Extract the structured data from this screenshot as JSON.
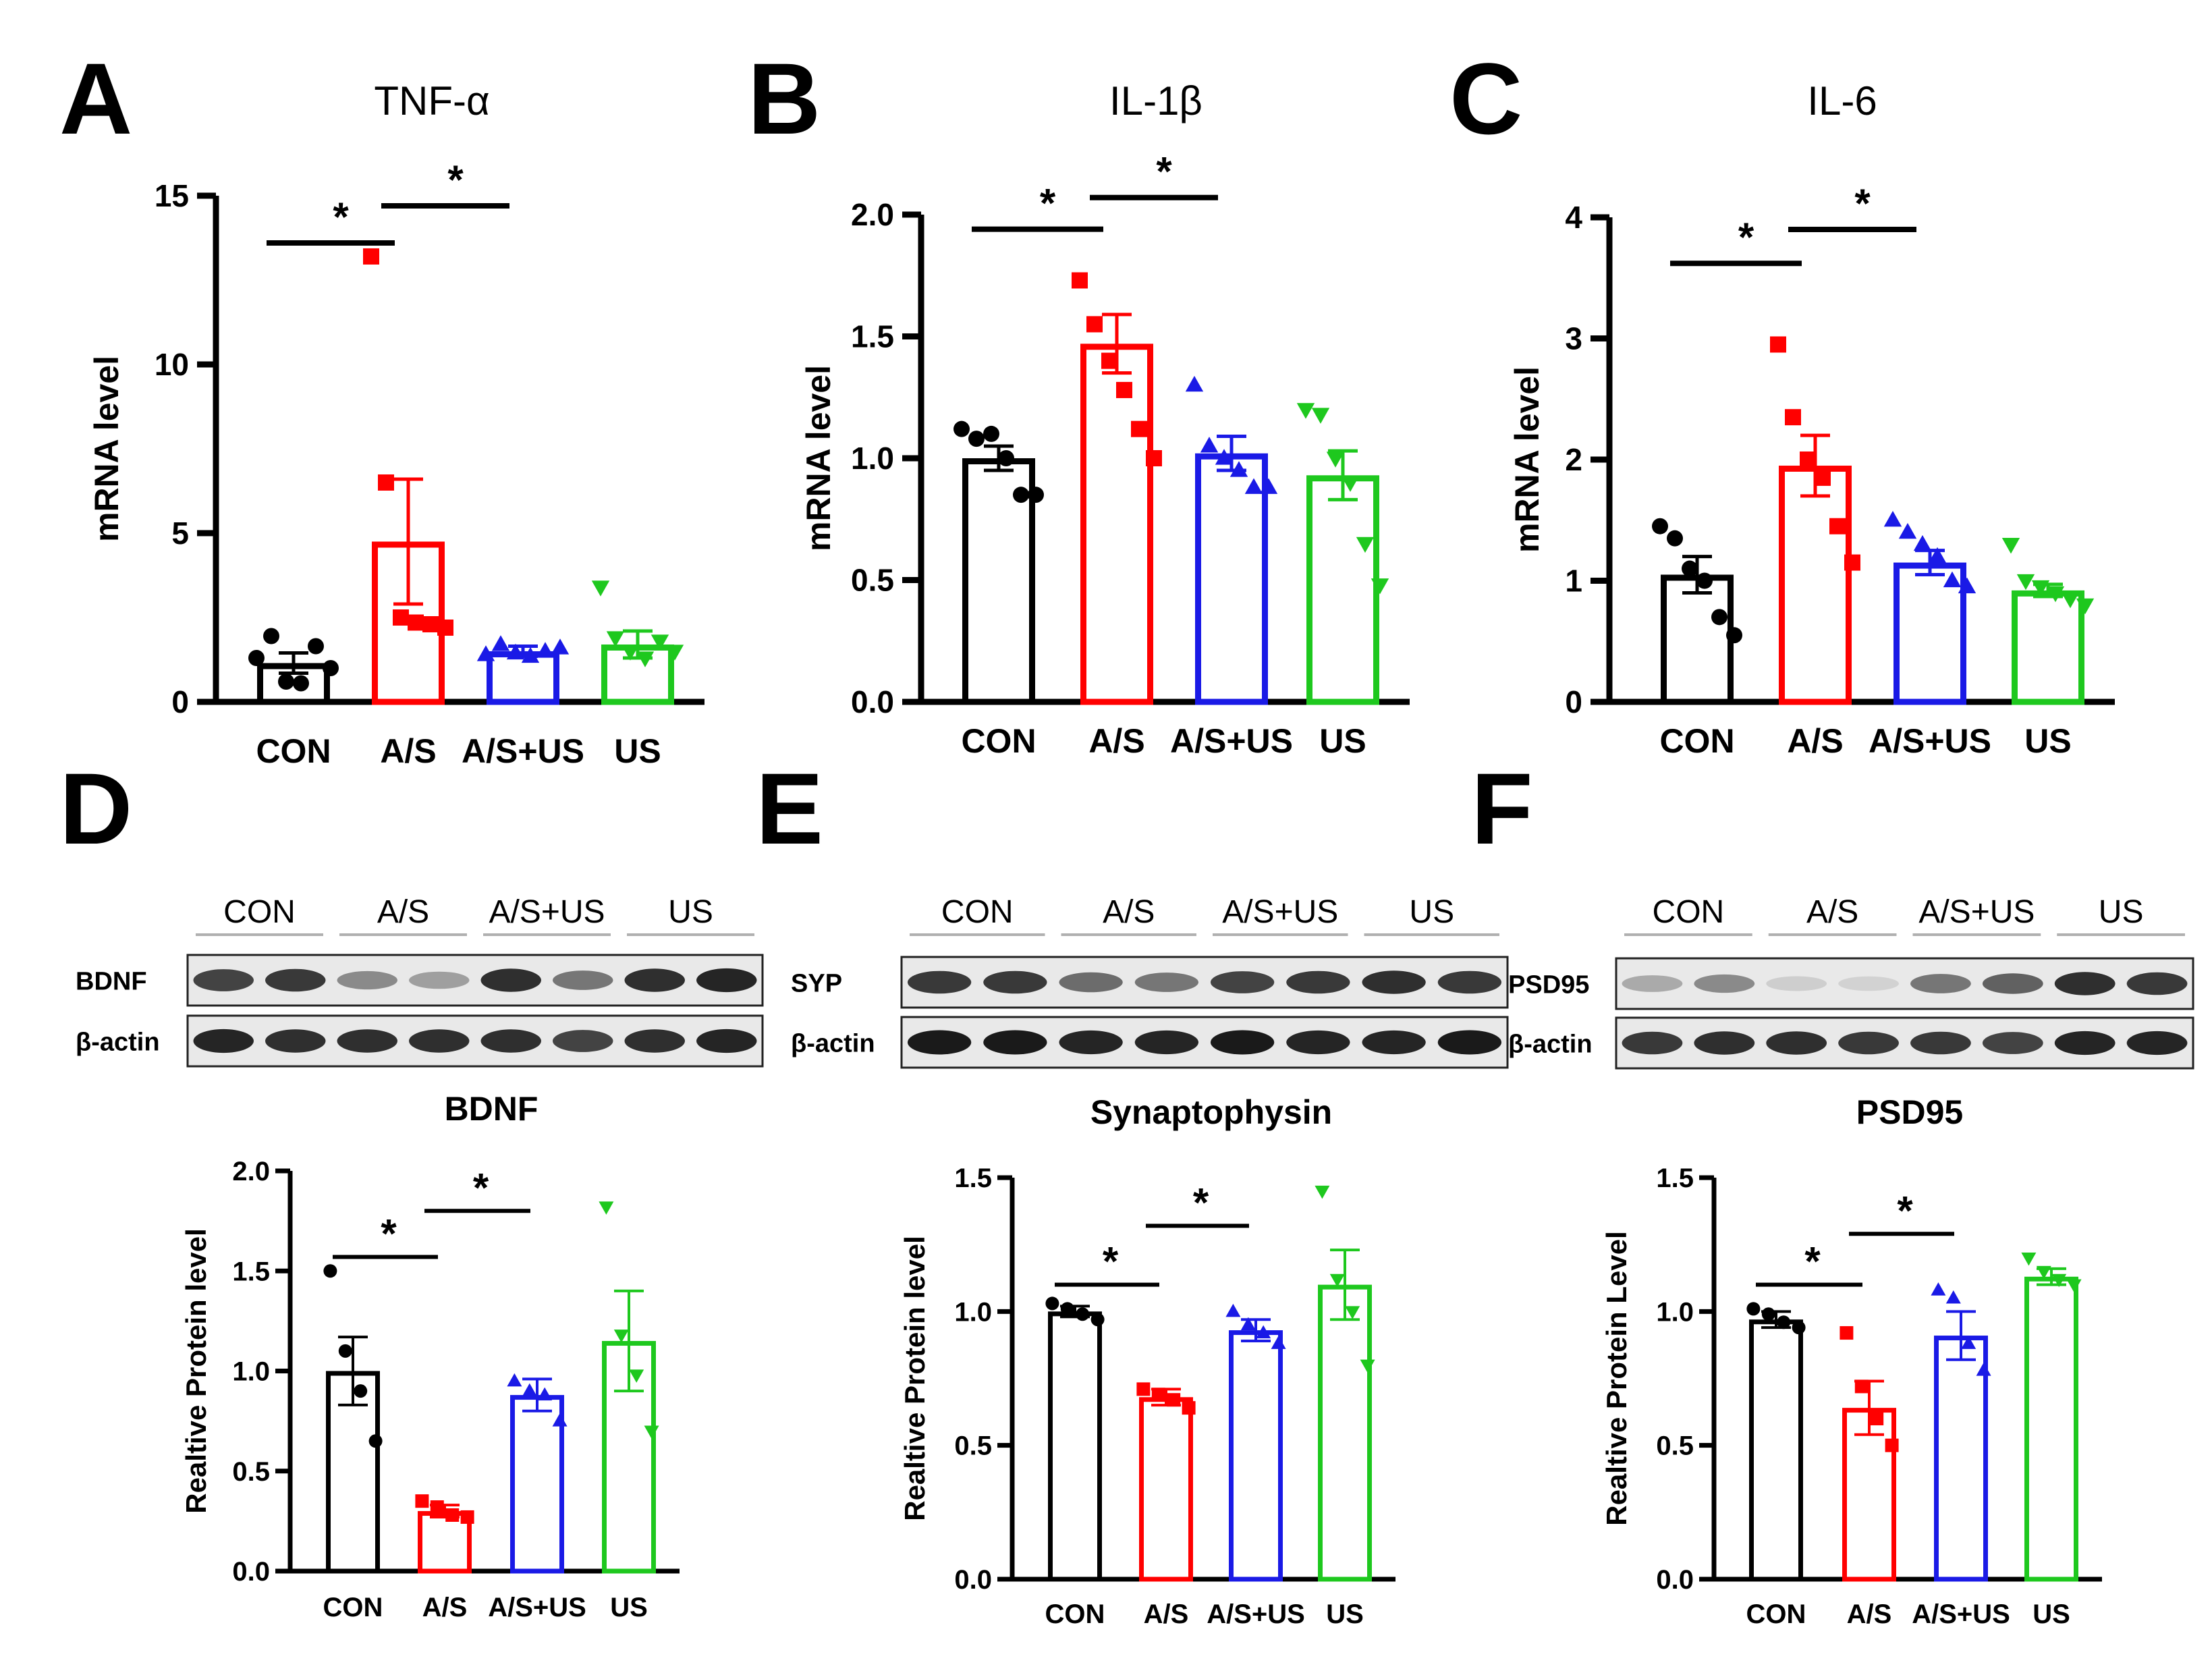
{
  "colors": {
    "CON": "#000000",
    "A/S": "#ff0000",
    "A/S+US": "#1a1ae6",
    "US": "#1ec81e",
    "axis": "#000000",
    "lane_rule": "#b0b0b0"
  },
  "chart_data": [
    {
      "panel": "A",
      "type": "bar",
      "title": "TNF-α",
      "ylabel": "mRNA level",
      "ylim": [
        0,
        15
      ],
      "yticks": [
        "0",
        "5",
        "10",
        "15"
      ],
      "categories": [
        "CON",
        "A/S",
        "A/S+US",
        "US"
      ],
      "values": [
        1.15,
        4.75,
        1.5,
        1.7
      ],
      "sem": [
        0.3,
        1.85,
        0.15,
        0.4
      ],
      "points": [
        [
          1.3,
          1.95,
          0.6,
          0.55,
          1.65,
          1.0
        ],
        [
          13.2,
          6.5,
          2.5,
          2.35,
          2.3,
          2.2
        ],
        [
          1.4,
          1.7,
          1.45,
          1.35,
          1.5,
          1.6
        ],
        [
          3.4,
          1.9,
          1.5,
          1.3,
          1.8,
          1.5
        ]
      ],
      "markers": [
        "circle",
        "square",
        "triangle",
        "triangle-down"
      ],
      "significance": [
        {
          "from": "CON",
          "to": "A/S",
          "label": "*",
          "y": 13.6
        },
        {
          "from": "A/S",
          "to": "A/S+US",
          "label": "*",
          "y": 14.7
        }
      ]
    },
    {
      "panel": "B",
      "type": "bar",
      "title": "IL-1β",
      "ylabel": "mRNA level",
      "ylim": [
        0,
        2
      ],
      "yticks": [
        "0.0",
        "0.5",
        "1.0",
        "1.5",
        "2.0"
      ],
      "categories": [
        "CON",
        "A/S",
        "A/S+US",
        "US"
      ],
      "values": [
        1.0,
        1.47,
        1.02,
        0.93
      ],
      "sem": [
        0.05,
        0.12,
        0.07,
        0.1
      ],
      "points": [
        [
          1.12,
          1.08,
          1.1,
          1.0,
          0.85,
          0.85
        ],
        [
          1.73,
          1.55,
          1.4,
          1.28,
          1.12,
          1.0
        ],
        [
          1.3,
          1.05,
          1.0,
          0.95,
          0.88,
          0.88
        ],
        [
          1.2,
          1.18,
          1.0,
          0.9,
          0.65,
          0.48
        ]
      ],
      "markers": [
        "circle",
        "square",
        "triangle",
        "triangle-down"
      ],
      "significance": [
        {
          "from": "CON",
          "to": "A/S",
          "label": "*",
          "y": 1.94
        },
        {
          "from": "A/S",
          "to": "A/S+US",
          "label": "*",
          "y": 2.07
        }
      ]
    },
    {
      "panel": "C",
      "type": "bar",
      "title": "IL-6",
      "ylabel": "mRNA level",
      "ylim": [
        0,
        4
      ],
      "yticks": [
        "0",
        "1",
        "2",
        "3",
        "4"
      ],
      "categories": [
        "CON",
        "A/S",
        "A/S+US",
        "US"
      ],
      "values": [
        1.05,
        1.95,
        1.15,
        0.92
      ],
      "sem": [
        0.15,
        0.25,
        0.1,
        0.05
      ],
      "points": [
        [
          1.45,
          1.35,
          1.1,
          1.0,
          0.7,
          0.55
        ],
        [
          2.95,
          2.35,
          2.0,
          1.85,
          1.45,
          1.15
        ],
        [
          1.5,
          1.4,
          1.3,
          1.2,
          1.0,
          0.95
        ],
        [
          1.3,
          1.0,
          0.95,
          0.9,
          0.85,
          0.8
        ]
      ],
      "markers": [
        "circle",
        "square",
        "triangle",
        "triangle-down"
      ],
      "significance": [
        {
          "from": "CON",
          "to": "A/S",
          "label": "*",
          "y": 3.62
        },
        {
          "from": "A/S",
          "to": "A/S+US",
          "label": "*",
          "y": 3.9
        }
      ]
    },
    {
      "panel": "D",
      "type": "bar",
      "title": "BDNF",
      "ylabel": "Realtive Protein level",
      "ylim": [
        0,
        2
      ],
      "yticks": [
        "0.0",
        "0.5",
        "1.0",
        "1.5",
        "2.0"
      ],
      "categories": [
        "CON",
        "A/S",
        "A/S+US",
        "US"
      ],
      "values": [
        1.0,
        0.3,
        0.88,
        1.15
      ],
      "sem": [
        0.17,
        0.03,
        0.08,
        0.25
      ],
      "points": [
        [
          1.5,
          1.1,
          0.9,
          0.65
        ],
        [
          0.35,
          0.32,
          0.28,
          0.27
        ],
        [
          0.95,
          0.9,
          0.88,
          0.75
        ],
        [
          1.82,
          1.18,
          0.98,
          0.7
        ]
      ],
      "markers": [
        "circle",
        "square",
        "triangle",
        "triangle-down"
      ],
      "significance": [
        {
          "from": "CON",
          "to": "A/S",
          "label": "*",
          "y": 1.57
        },
        {
          "from": "A/S",
          "to": "A/S+US",
          "label": "*",
          "y": 1.8
        }
      ]
    },
    {
      "panel": "E",
      "type": "bar",
      "title": "Synaptophysin",
      "ylabel": "Realtive Protein level",
      "ylim": [
        0,
        1.5
      ],
      "yticks": [
        "0.0",
        "0.5",
        "1.0",
        "1.5"
      ],
      "categories": [
        "CON",
        "A/S",
        "A/S+US",
        "US"
      ],
      "values": [
        1.0,
        0.68,
        0.93,
        1.1
      ],
      "sem": [
        0.02,
        0.03,
        0.04,
        0.13
      ],
      "points": [
        [
          1.03,
          1.01,
          0.99,
          0.97
        ],
        [
          0.71,
          0.69,
          0.67,
          0.64
        ],
        [
          1.0,
          0.95,
          0.92,
          0.88
        ],
        [
          1.45,
          1.12,
          1.0,
          0.8
        ]
      ],
      "markers": [
        "circle",
        "square",
        "triangle",
        "triangle-down"
      ],
      "significance": [
        {
          "from": "CON",
          "to": "A/S",
          "label": "*",
          "y": 1.1
        },
        {
          "from": "A/S",
          "to": "A/S+US",
          "label": "*",
          "y": 1.32
        }
      ]
    },
    {
      "panel": "F",
      "type": "bar",
      "title": "PSD95",
      "ylabel": "Realtive Protein Level",
      "ylim": [
        0,
        1.5
      ],
      "yticks": [
        "0.0",
        "0.5",
        "1.0",
        "1.5"
      ],
      "categories": [
        "CON",
        "A/S",
        "A/S+US",
        "US"
      ],
      "values": [
        0.97,
        0.64,
        0.91,
        1.13
      ],
      "sem": [
        0.03,
        0.1,
        0.09,
        0.03
      ],
      "points": [
        [
          1.01,
          0.99,
          0.96,
          0.94
        ],
        [
          0.92,
          0.72,
          0.6,
          0.5
        ],
        [
          1.08,
          1.05,
          0.88,
          0.78
        ],
        [
          1.2,
          1.15,
          1.12,
          1.1
        ]
      ],
      "markers": [
        "circle",
        "square",
        "triangle",
        "triangle-down"
      ],
      "significance": [
        {
          "from": "CON",
          "to": "A/S",
          "label": "*",
          "y": 1.1
        },
        {
          "from": "A/S",
          "to": "A/S+US",
          "label": "*",
          "y": 1.29
        }
      ]
    }
  ],
  "panels": {
    "A": {
      "letter": "A"
    },
    "B": {
      "letter": "B"
    },
    "C": {
      "letter": "C"
    },
    "D": {
      "letter": "D"
    },
    "E": {
      "letter": "E"
    },
    "F": {
      "letter": "F"
    }
  },
  "blots": [
    {
      "panel": "D",
      "lane_groups": [
        "CON",
        "A/S",
        "A/S+US",
        "US"
      ],
      "rows": [
        {
          "label": "BDNF",
          "band_intensity": [
            0.8,
            0.85,
            0.45,
            0.35,
            0.9,
            0.55,
            0.9,
            0.95
          ]
        },
        {
          "label": "β-actin",
          "band_intensity": [
            0.95,
            0.9,
            0.9,
            0.9,
            0.9,
            0.8,
            0.9,
            0.95
          ]
        }
      ]
    },
    {
      "panel": "E",
      "lane_groups": [
        "CON",
        "A/S",
        "A/S+US",
        "US"
      ],
      "rows": [
        {
          "label": "SYP",
          "band_intensity": [
            0.85,
            0.85,
            0.6,
            0.55,
            0.8,
            0.85,
            0.9,
            0.85
          ]
        },
        {
          "label": "β-actin",
          "band_intensity": [
            1.0,
            1.0,
            0.95,
            0.95,
            1.0,
            0.95,
            0.95,
            1.0
          ]
        }
      ]
    },
    {
      "panel": "F",
      "lane_groups": [
        "CON",
        "A/S",
        "A/S+US",
        "US"
      ],
      "rows": [
        {
          "label": "PSD95",
          "band_intensity": [
            0.3,
            0.45,
            0.12,
            0.1,
            0.55,
            0.65,
            0.9,
            0.85
          ]
        },
        {
          "label": "β-actin",
          "band_intensity": [
            0.85,
            0.9,
            0.9,
            0.85,
            0.85,
            0.8,
            0.95,
            0.95
          ]
        }
      ]
    }
  ]
}
